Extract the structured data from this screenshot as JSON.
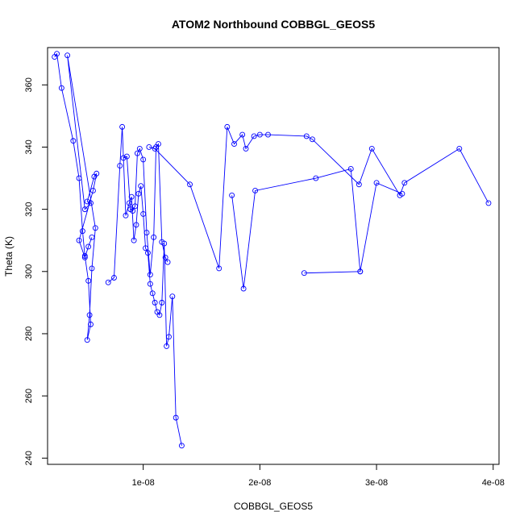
{
  "chart_data": {
    "type": "line",
    "title": "ATOM2 Northbound COBBGL_GEOS5",
    "xlabel": "COBBGL_GEOS5",
    "ylabel": "Theta (K)",
    "xlim": [
      1.8e-09,
      4.05e-08
    ],
    "ylim": [
      238,
      372
    ],
    "xticks": [
      {
        "value": 1e-08,
        "label": "1e-08"
      },
      {
        "value": 2e-08,
        "label": "2e-08"
      },
      {
        "value": 3e-08,
        "label": "3e-08"
      },
      {
        "value": 4e-08,
        "label": "4e-08"
      }
    ],
    "yticks": [
      {
        "value": 240,
        "label": "240"
      },
      {
        "value": 260,
        "label": "260"
      },
      {
        "value": 280,
        "label": "280"
      },
      {
        "value": 300,
        "label": "300"
      },
      {
        "value": 320,
        "label": "320"
      },
      {
        "value": 340,
        "label": "340"
      },
      {
        "value": 360,
        "label": "360"
      }
    ],
    "grid": false,
    "legend": "none",
    "series": [
      {
        "color": "#0000ff",
        "x": [
          2.4e-09,
          2.6e-09,
          3e-09,
          4e-09,
          4.5e-09,
          4.8e-09,
          5e-09,
          5.3e-09,
          5.5e-09,
          5.2e-09,
          5.4e-09,
          5.6e-09,
          5.9e-09,
          3.5e-09,
          5e-09,
          5.5e-09,
          5.2e-09,
          5.8e-09,
          6e-09,
          5.7e-09,
          4.5e-09,
          5e-09,
          5.3e-09,
          5.6e-09
        ],
        "y": [
          369,
          370,
          359,
          342,
          330,
          313,
          305,
          297,
          283,
          278,
          286,
          301,
          314,
          369.5,
          320,
          322,
          322.5,
          330.5,
          331.5,
          326,
          310,
          304.5,
          308,
          311
        ],
        "markers": true
      },
      {
        "color": "#0000ff",
        "x": [
          7e-09,
          7.5e-09,
          8e-09,
          8.2e-09,
          8.5e-09,
          8.8e-09,
          9e-09,
          9.2e-09,
          9.4e-09,
          9.6e-09,
          9.8e-09,
          1e-08,
          1.02e-08,
          1.04e-08,
          1.06e-08,
          1.08e-08,
          1.1e-08,
          1.12e-08,
          1.14e-08,
          1.16e-08,
          1.18e-08,
          1.2e-08,
          1.22e-08,
          1.25e-08,
          1.28e-08,
          1.33e-08
        ],
        "y": [
          296.5,
          298,
          334,
          346.5,
          318,
          322,
          324,
          310,
          315,
          325,
          327.5,
          318.5,
          307.5,
          306,
          296,
          293,
          290,
          287,
          286,
          290,
          309,
          276,
          279,
          292,
          253,
          244
        ],
        "markers": true
      },
      {
        "color": "#0000ff",
        "x": [
          8.3e-09,
          8.6e-09,
          8.9e-09,
          9.1e-09,
          9.3e-09,
          9.5e-09,
          9.7e-09,
          1e-08,
          1.03e-08,
          1.06e-08,
          1.09e-08,
          1.11e-08,
          1.13e-08,
          1.16e-08,
          1.19e-08,
          1.21e-08
        ],
        "y": [
          336.5,
          337,
          320,
          319.5,
          321,
          338,
          339.5,
          336,
          312.5,
          299,
          311,
          340,
          341,
          309.5,
          304.5,
          303
        ],
        "markers": true
      },
      {
        "color": "#0000ff",
        "x": [
          1.05e-08,
          1.1e-08,
          1.4e-08,
          1.65e-08,
          1.72e-08,
          1.78e-08,
          1.85e-08,
          1.88e-08,
          1.95e-08,
          2e-08,
          2.07e-08,
          2.4e-08,
          2.45e-08,
          2.85e-08,
          2.96e-08,
          3.2e-08,
          3.24e-08,
          3.71e-08,
          3.96e-08
        ],
        "y": [
          340,
          339.5,
          328,
          301,
          346.5,
          341,
          344,
          339.5,
          343.5,
          344,
          344,
          343.5,
          342.5,
          328,
          339.5,
          324.5,
          328.5,
          339.5,
          322
        ],
        "markers": true
      },
      {
        "color": "#0000ff",
        "x": [
          1.76e-08,
          1.86e-08,
          1.96e-08,
          2.48e-08,
          2.78e-08,
          2.86e-08,
          2.38e-08,
          2.86e-08,
          3e-08,
          3.22e-08
        ],
        "y": [
          324.5,
          294.5,
          326,
          330,
          333,
          300,
          299.5,
          300,
          328.5,
          325
        ],
        "markers": true
      }
    ]
  }
}
